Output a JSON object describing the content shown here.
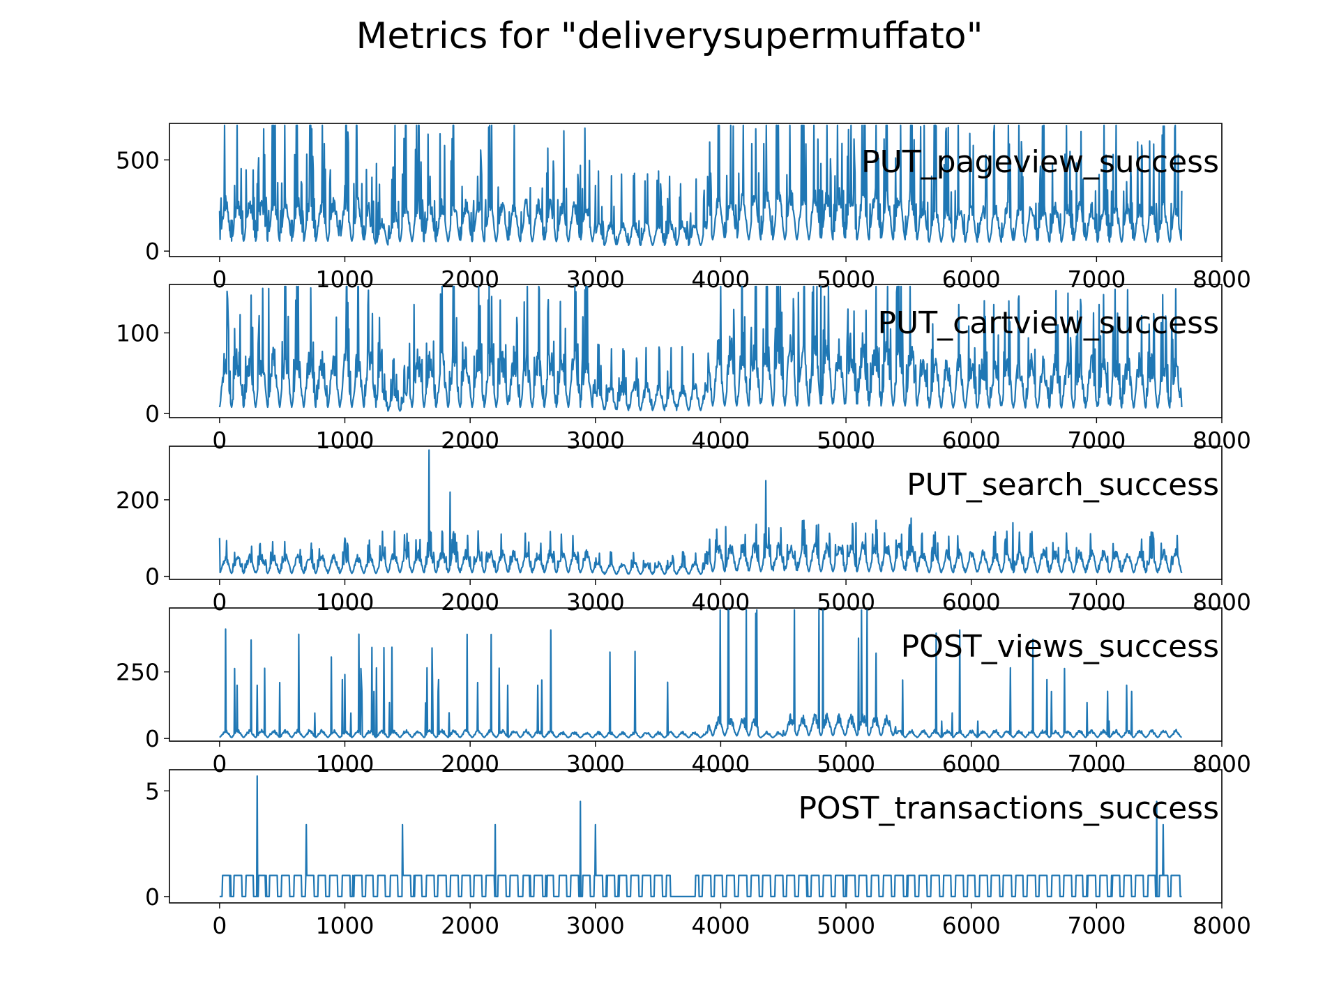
{
  "figure_title": "Metrics for \"deliverysupermuffato\"",
  "colors": {
    "line": "#1f77b4",
    "axes": "#000000",
    "background": "#ffffff"
  },
  "chart_data": [
    {
      "type": "line",
      "series": [
        {
          "name": "PUT_pageview_success",
          "peaks": [
            [
              0,
              220
            ],
            [
              120,
              360
            ],
            [
              300,
              370
            ],
            [
              650,
              380
            ],
            [
              1000,
              360
            ],
            [
              1250,
              480
            ],
            [
              1680,
              410
            ],
            [
              2060,
              410
            ],
            [
              2880,
              470
            ],
            [
              3000,
              360
            ],
            [
              4280,
              670
            ],
            [
              4800,
              480
            ],
            [
              5250,
              540
            ],
            [
              6300,
              340
            ],
            [
              7020,
              420
            ],
            [
              7240,
              380
            ],
            [
              7500,
              430
            ],
            [
              7680,
              330
            ]
          ]
        }
      ],
      "xlim": [
        -400,
        8000
      ],
      "ylim": [
        -30,
        700
      ],
      "xticks": [
        0,
        1000,
        2000,
        3000,
        4000,
        5000,
        6000,
        7000,
        8000
      ],
      "xticklabels": [
        "0",
        "1000",
        "2000",
        "3000",
        "4000",
        "5000",
        "6000",
        "7000",
        "8000"
      ],
      "yticks": [
        0,
        500
      ],
      "yticklabels": [
        "0",
        "500"
      ],
      "base": 130,
      "amp": 110,
      "spike_threshold": 0.83,
      "spike_mult": 2.5,
      "floor": 3,
      "round": false,
      "sections": [
        {
          "from": 0,
          "to": 1200,
          "amp": 1.0
        },
        {
          "from": 1200,
          "to": 1400,
          "amp": 0.6
        },
        {
          "from": 1400,
          "to": 3000,
          "amp": 0.95
        },
        {
          "from": 3000,
          "to": 3900,
          "amp": 0.55
        },
        {
          "from": 3900,
          "to": 5600,
          "amp": 1.15
        },
        {
          "from": 5600,
          "to": 7680,
          "amp": 0.9
        }
      ]
    },
    {
      "type": "line",
      "series": [
        {
          "name": "PUT_cartview_success",
          "peaks": [
            [
              390,
              155
            ],
            [
              1550,
              135
            ],
            [
              2900,
              120
            ],
            [
              4190,
              120
            ],
            [
              4620,
              150
            ],
            [
              4800,
              160
            ],
            [
              5900,
              135
            ],
            [
              7020,
              135
            ],
            [
              7600,
              110
            ]
          ]
        }
      ],
      "xlim": [
        -400,
        8000
      ],
      "ylim": [
        -5,
        160
      ],
      "xticks": [
        0,
        1000,
        2000,
        3000,
        4000,
        5000,
        6000,
        7000,
        8000
      ],
      "xticklabels": [
        "0",
        "1000",
        "2000",
        "3000",
        "4000",
        "5000",
        "6000",
        "7000",
        "8000"
      ],
      "yticks": [
        0,
        100
      ],
      "yticklabels": [
        "0",
        "100"
      ],
      "base": 20,
      "amp": 45,
      "spike_threshold": 0.85,
      "spike_mult": 1.9,
      "floor": 0,
      "round": false,
      "sections": [
        {
          "from": 0,
          "to": 1300,
          "amp": 1.0
        },
        {
          "from": 1300,
          "to": 1500,
          "amp": 0.4
        },
        {
          "from": 1500,
          "to": 3000,
          "amp": 1.0
        },
        {
          "from": 3000,
          "to": 3900,
          "amp": 0.5
        },
        {
          "from": 3900,
          "to": 5600,
          "amp": 1.2
        },
        {
          "from": 5600,
          "to": 7680,
          "amp": 0.9
        }
      ]
    },
    {
      "type": "line",
      "series": [
        {
          "name": "PUT_search_success",
          "peaks": [
            [
              0,
              100
            ],
            [
              1000,
              100
            ],
            [
              1670,
              330
            ],
            [
              1840,
              220
            ],
            [
              4040,
              130
            ],
            [
              4360,
              250
            ],
            [
              4780,
              135
            ],
            [
              5080,
              140
            ],
            [
              6330,
              140
            ]
          ]
        }
      ],
      "xlim": [
        -400,
        8000
      ],
      "ylim": [
        -8,
        340
      ],
      "xticks": [
        0,
        1000,
        2000,
        3000,
        4000,
        5000,
        6000,
        7000,
        8000
      ],
      "xticklabels": [
        "0",
        "1000",
        "2000",
        "3000",
        "4000",
        "5000",
        "6000",
        "7000",
        "8000"
      ],
      "yticks": [
        0,
        200
      ],
      "yticklabels": [
        "0",
        "200"
      ],
      "base": 22,
      "amp": 28,
      "spike_threshold": 0.88,
      "spike_mult": 1.6,
      "floor": 0,
      "round": false,
      "sections": [
        {
          "from": 0,
          "to": 1300,
          "amp": 0.9
        },
        {
          "from": 1300,
          "to": 3000,
          "amp": 1.1
        },
        {
          "from": 3000,
          "to": 3900,
          "amp": 0.6
        },
        {
          "from": 3900,
          "to": 5600,
          "amp": 1.4
        },
        {
          "from": 5600,
          "to": 7680,
          "amp": 1.1
        }
      ]
    },
    {
      "type": "line",
      "series": [
        {
          "name": "POST_views_success",
          "peaks": [
            [
              140,
              200
            ],
            [
              300,
              200
            ],
            [
              480,
              210
            ],
            [
              1000,
              240
            ],
            [
              1250,
              265
            ],
            [
              1700,
              200
            ],
            [
              2060,
              210
            ],
            [
              2300,
              200
            ],
            [
              2540,
              200
            ],
            [
              4280,
              470
            ],
            [
              5240,
              320
            ],
            [
              7240,
              200
            ]
          ]
        }
      ],
      "xlim": [
        -400,
        8000
      ],
      "ylim": [
        -10,
        490
      ],
      "xticks": [
        0,
        1000,
        2000,
        3000,
        4000,
        5000,
        6000,
        7000,
        8000
      ],
      "xticklabels": [
        "0",
        "1000",
        "2000",
        "3000",
        "4000",
        "5000",
        "6000",
        "7000",
        "8000"
      ],
      "yticks": [
        0,
        250
      ],
      "yticklabels": [
        "0",
        "250"
      ],
      "base": 10,
      "amp": 15,
      "spike_threshold": 0.97,
      "spike_mult": 12,
      "floor": 0,
      "round": false,
      "sections": [
        {
          "from": 0,
          "to": 2700,
          "amp": 1.0
        },
        {
          "from": 2700,
          "to": 3900,
          "amp": 0.8
        },
        {
          "from": 3900,
          "to": 4300,
          "amp": 2.5
        },
        {
          "from": 4300,
          "to": 4500,
          "amp": 0.8
        },
        {
          "from": 4500,
          "to": 5400,
          "amp": 2.8
        },
        {
          "from": 5400,
          "to": 7680,
          "amp": 1.0
        }
      ]
    },
    {
      "type": "line",
      "series": [
        {
          "name": "POST_transactions_success",
          "peaks": [
            [
              300,
              5.7
            ],
            [
              690,
              3.4
            ],
            [
              1460,
              3.4
            ],
            [
              2200,
              3.4
            ],
            [
              2880,
              4.5
            ],
            [
              3000,
              3.4
            ],
            [
              7480,
              4.5
            ],
            [
              7530,
              3.4
            ]
          ]
        }
      ],
      "xlim": [
        -400,
        8000
      ],
      "ylim": [
        -0.3,
        6
      ],
      "xticks": [
        0,
        1000,
        2000,
        3000,
        4000,
        5000,
        6000,
        7000,
        8000
      ],
      "xticklabels": [
        "0",
        "1000",
        "2000",
        "3000",
        "4000",
        "5000",
        "6000",
        "7000",
        "8000"
      ],
      "yticks": [
        0,
        5
      ],
      "yticklabels": [
        "0",
        "5"
      ],
      "base": 0.3,
      "amp": 0.9,
      "spike_threshold": 0.96,
      "spike_mult": 2,
      "floor": 0,
      "round": true,
      "sections": [
        {
          "from": 0,
          "to": 3600,
          "amp": 1.0
        },
        {
          "from": 3600,
          "to": 3800,
          "amp": 0.0
        },
        {
          "from": 3800,
          "to": 7680,
          "amp": 1.0
        }
      ]
    }
  ]
}
